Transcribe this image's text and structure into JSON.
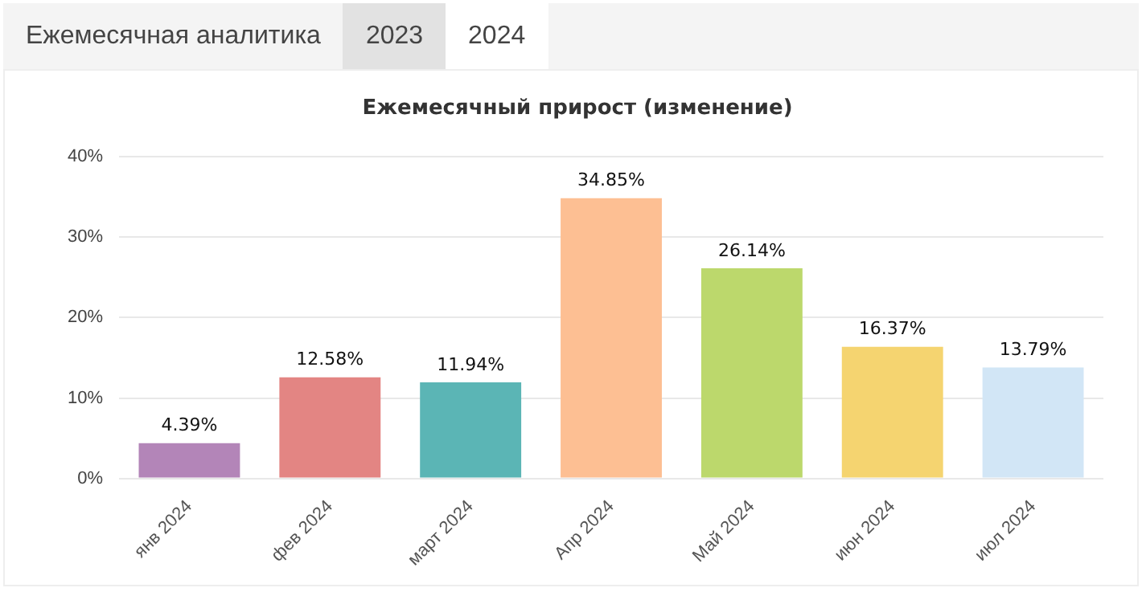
{
  "chart_data": {
    "type": "bar",
    "title": "Ежемесячный прирост (изменение)",
    "categories": [
      "янв 2024",
      "фев 2024",
      "март 2024",
      "Апр 2024",
      "Май 2024",
      "июн 2024",
      "июл 2024"
    ],
    "values": [
      4.39,
      12.58,
      11.94,
      34.85,
      26.14,
      16.37,
      13.79
    ],
    "colors": [
      "#b385b8",
      "#e38583",
      "#5bb5b5",
      "#fdbf93",
      "#bcd86c",
      "#f5d470",
      "#d2e6f6"
    ],
    "value_labels": [
      "4.39%",
      "12.58%",
      "11.94%",
      "34.85%",
      "26.14%",
      "16.37%",
      "13.79%"
    ],
    "ylim": [
      0,
      40
    ],
    "yticks": [
      {
        "value": 0,
        "label": "0%"
      },
      {
        "value": 10,
        "label": "10%"
      },
      {
        "value": 20,
        "label": "20%"
      },
      {
        "value": 30,
        "label": "30%"
      },
      {
        "value": 40,
        "label": "40%"
      }
    ],
    "grid": "y",
    "legend": false,
    "annotations": [
      "Ежемесячная аналитика",
      "2023",
      "2024"
    ]
  }
}
